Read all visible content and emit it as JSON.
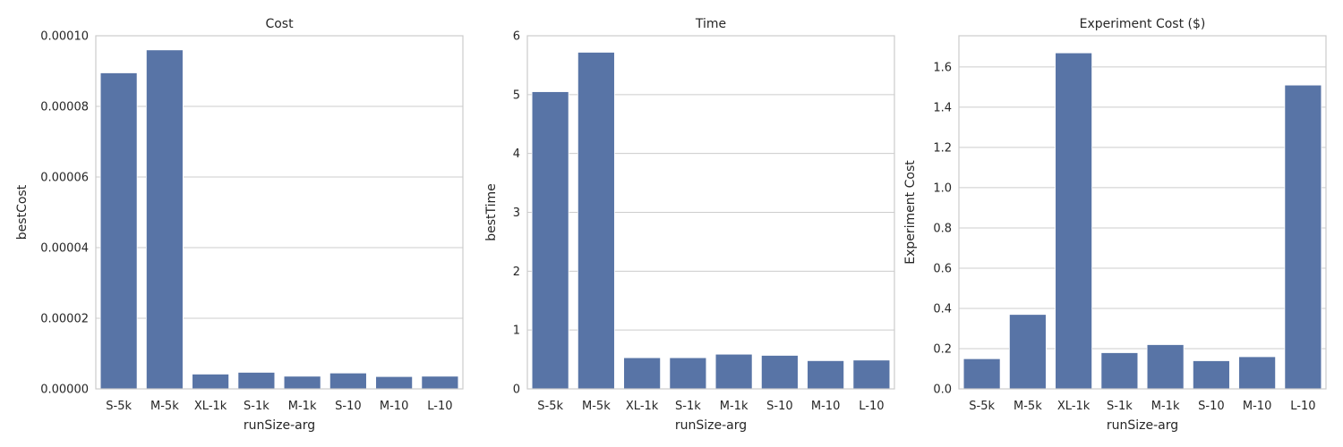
{
  "chart_data": [
    {
      "type": "bar",
      "title": "Cost",
      "xlabel": "runSize-arg",
      "ylabel": "bestCost",
      "categories": [
        "S-5k",
        "M-5k",
        "XL-1k",
        "S-1k",
        "M-1k",
        "S-10",
        "M-10",
        "L-10"
      ],
      "values": [
        8.95e-05,
        9.6e-05,
        4.2e-06,
        4.7e-06,
        3.6e-06,
        4.5e-06,
        3.5e-06,
        3.6e-06
      ],
      "ylim": [
        0,
        0.0001
      ],
      "yticks": [
        0,
        2e-05,
        4e-05,
        6e-05,
        8e-05,
        0.0001
      ],
      "ytick_labels": [
        "0.00000",
        "0.00002",
        "0.00004",
        "0.00006",
        "0.00008",
        "0.00010"
      ],
      "color": "#5874a6",
      "grid": true
    },
    {
      "type": "bar",
      "title": "Time",
      "xlabel": "runSize-arg",
      "ylabel": "bestTime",
      "categories": [
        "S-5k",
        "M-5k",
        "XL-1k",
        "S-1k",
        "M-1k",
        "S-10",
        "M-10",
        "L-10"
      ],
      "values": [
        5.05,
        5.72,
        0.53,
        0.53,
        0.59,
        0.57,
        0.48,
        0.49
      ],
      "ylim": [
        0,
        6
      ],
      "yticks": [
        0,
        1,
        2,
        3,
        4,
        5,
        6
      ],
      "ytick_labels": [
        "0",
        "1",
        "2",
        "3",
        "4",
        "5",
        "6"
      ],
      "color": "#5874a6",
      "grid": true
    },
    {
      "type": "bar",
      "title": "Experiment Cost ($)",
      "xlabel": "runSize-arg",
      "ylabel": "Experiment Cost",
      "categories": [
        "S-5k",
        "M-5k",
        "XL-1k",
        "S-1k",
        "M-1k",
        "S-10",
        "M-10",
        "L-10"
      ],
      "values": [
        0.15,
        0.37,
        1.67,
        0.18,
        0.22,
        0.14,
        0.16,
        1.51
      ],
      "ylim": [
        0,
        1.755
      ],
      "yticks": [
        0,
        0.2,
        0.4,
        0.6,
        0.8,
        1.0,
        1.2,
        1.4,
        1.6
      ],
      "ytick_labels": [
        "0.0",
        "0.2",
        "0.4",
        "0.6",
        "0.8",
        "1.0",
        "1.2",
        "1.4",
        "1.6"
      ],
      "color": "#5874a6",
      "grid": true
    }
  ]
}
